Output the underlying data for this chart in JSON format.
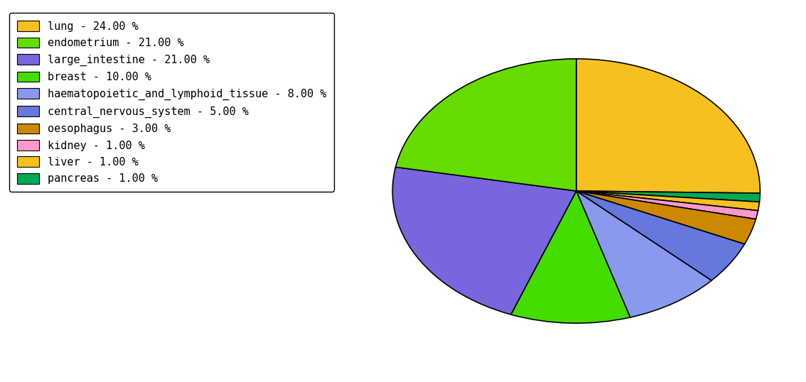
{
  "labels": [
    "lung",
    "pancreas",
    "liver",
    "kidney",
    "oesophagus",
    "central_nervous_system",
    "haematopoietic_and_lymphoid_tissue",
    "breast",
    "large_intestine",
    "endometrium"
  ],
  "values": [
    24,
    1,
    1,
    1,
    3,
    5,
    8,
    10,
    21,
    21
  ],
  "colors": [
    "#F5C020",
    "#00AA55",
    "#F5C020",
    "#FF99CC",
    "#CC8800",
    "#6677DD",
    "#8899EE",
    "#44DD00",
    "#7766DD",
    "#66DD00"
  ],
  "legend_labels": [
    "lung - 24.00 %",
    "endometrium - 21.00 %",
    "large_intestine - 21.00 %",
    "breast - 10.00 %",
    "haematopoietic_and_lymphoid_tissue - 8.00 %",
    "central_nervous_system - 5.00 %",
    "oesophagus - 3.00 %",
    "kidney - 1.00 %",
    "liver - 1.00 %",
    "pancreas - 1.00 %"
  ],
  "legend_colors": [
    "#F5C020",
    "#66DD00",
    "#7766DD",
    "#44DD00",
    "#8899EE",
    "#6677DD",
    "#CC8800",
    "#FF99CC",
    "#F5C020",
    "#00AA55"
  ],
  "figsize": [
    11.34,
    5.38
  ],
  "dpi": 100,
  "startangle": 90,
  "aspect_ratio": 0.72
}
